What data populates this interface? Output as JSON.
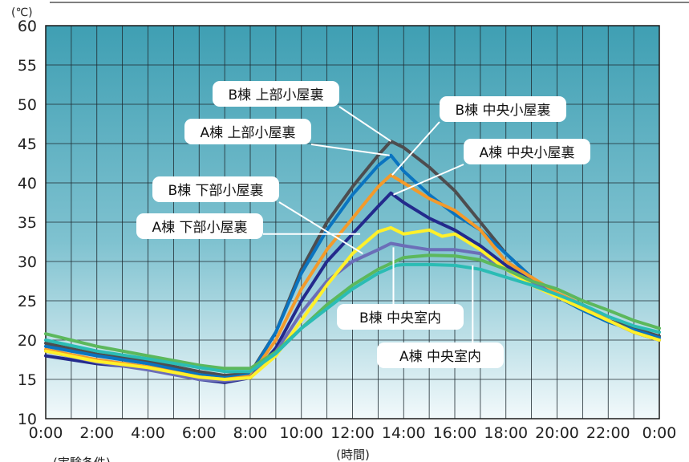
{
  "chart_data": {
    "type": "line",
    "y_unit": "(℃)",
    "xlabel": "(時間)",
    "footnote": "(実験条件)",
    "ylim": [
      10,
      60
    ],
    "y_ticks": [
      "10",
      "15",
      "20",
      "25",
      "30",
      "35",
      "40",
      "45",
      "50",
      "55",
      "60"
    ],
    "xlim": [
      0,
      24
    ],
    "x_ticks": [
      "0:00",
      "2:00",
      "4:00",
      "6:00",
      "8:00",
      "10:00",
      "12:00",
      "14:00",
      "16:00",
      "18:00",
      "20:00",
      "22:00",
      "0:00"
    ],
    "grid": true,
    "series": [
      {
        "name": "B棟 上部小屋裏",
        "color": "#4d4d4f",
        "x": [
          0,
          2,
          4,
          6,
          7,
          8,
          9,
          10,
          11,
          12,
          13,
          13.5,
          14,
          15,
          16,
          17,
          18,
          19,
          20,
          21,
          22,
          23,
          24
        ],
        "y": [
          19.6,
          18.2,
          17.3,
          16,
          15.5,
          15.8,
          21,
          29,
          35,
          39.5,
          43.5,
          45.3,
          44.5,
          42,
          39,
          35,
          31,
          28,
          25.5,
          24,
          22.5,
          21.5,
          20.5
        ]
      },
      {
        "name": "A棟 上部小屋裏",
        "color": "#0a74c0",
        "x": [
          0,
          2,
          4,
          6,
          7,
          8,
          9,
          10,
          11,
          12,
          13,
          13.5,
          14,
          15,
          16,
          17,
          18,
          19,
          20,
          21,
          22,
          23,
          24
        ],
        "y": [
          19.2,
          18,
          17,
          15.6,
          15.2,
          15.6,
          21,
          28.5,
          34,
          38.5,
          42.2,
          43.5,
          41.5,
          38.5,
          36,
          34,
          31,
          28,
          25.5,
          23.8,
          22.3,
          21.3,
          20.3
        ]
      },
      {
        "name": "B棟 中央小屋裏",
        "color": "#f39a2b",
        "x": [
          0,
          2,
          4,
          6,
          7,
          8,
          9,
          10,
          11,
          12,
          13,
          13.5,
          14,
          15,
          16,
          17,
          18,
          19,
          20,
          21,
          22,
          23,
          24
        ],
        "y": [
          18.8,
          17.5,
          16.6,
          15.3,
          15,
          15.4,
          20,
          26.5,
          31.5,
          35.5,
          39.5,
          41,
          40,
          38,
          36.5,
          34,
          30,
          28,
          26,
          24.5,
          22.5,
          21,
          20
        ]
      },
      {
        "name": "A棟 中央小屋裏",
        "color": "#232a8c",
        "x": [
          0,
          2,
          4,
          6,
          7,
          8,
          9,
          10,
          11,
          12,
          13,
          13.5,
          14,
          15,
          16,
          17,
          18,
          19,
          20,
          21,
          22,
          23,
          24
        ],
        "y": [
          18,
          17,
          16.4,
          15,
          14.6,
          15.2,
          19,
          25,
          30,
          33.5,
          37,
          38.7,
          37.5,
          35.5,
          34,
          32,
          29.5,
          27.5,
          25.5,
          24,
          22.5,
          21,
          20
        ]
      },
      {
        "name": "B棟 下部小屋裏",
        "color": "#6b6eb8",
        "x": [
          0,
          2,
          4,
          6,
          7,
          8,
          9,
          10,
          11,
          12,
          13,
          13.5,
          14,
          15,
          16,
          17,
          18,
          19,
          20,
          21,
          22,
          23,
          24
        ],
        "y": [
          18.6,
          17.2,
          16.2,
          15,
          14.8,
          15.2,
          18.5,
          23.5,
          27.5,
          30,
          31.5,
          32.3,
          32,
          31.5,
          31.5,
          31,
          29,
          27.5,
          25.5,
          24,
          22.5,
          21,
          20
        ]
      },
      {
        "name": "A棟 下部小屋裏",
        "color": "#fff02a",
        "x": [
          0,
          2,
          4,
          6,
          7,
          8,
          9,
          10,
          11,
          12,
          13,
          13.5,
          14,
          15,
          15.5,
          16,
          17,
          18,
          19,
          20,
          21,
          22,
          23,
          24
        ],
        "y": [
          18.6,
          17.3,
          16.5,
          15.3,
          15,
          15.2,
          18,
          22.5,
          27,
          31,
          33.8,
          34.3,
          33.5,
          34,
          33.2,
          33.5,
          31.5,
          29,
          27,
          25.5,
          24,
          22.5,
          21,
          20
        ]
      },
      {
        "name": "B棟 中央室内",
        "color": "#5cb85c",
        "x": [
          0,
          2,
          4,
          6,
          7,
          8,
          9,
          10,
          11,
          12,
          13,
          14,
          15,
          16,
          17,
          18,
          19,
          20,
          21,
          22,
          23,
          24
        ],
        "y": [
          20.8,
          19.2,
          18,
          16.8,
          16.4,
          16.4,
          18.5,
          21.5,
          24.5,
          27,
          29,
          30.5,
          30.8,
          30.7,
          30.2,
          29,
          27.5,
          26.5,
          25,
          23.8,
          22.5,
          21.5
        ]
      },
      {
        "name": "A棟 中央室内",
        "color": "#2bbcb4",
        "x": [
          0,
          2,
          4,
          6,
          7,
          8,
          9,
          10,
          11,
          12,
          13,
          13.7,
          14,
          15,
          16,
          17,
          18,
          19,
          20,
          21,
          22,
          23,
          24
        ],
        "y": [
          20,
          18.6,
          17.6,
          16.5,
          16,
          16,
          18.3,
          21.5,
          24,
          26.5,
          28.5,
          29.5,
          29.6,
          29.6,
          29.5,
          29,
          28,
          27,
          25.8,
          24.5,
          23,
          21.8,
          21
        ]
      }
    ],
    "callouts": [
      {
        "text": "B棟 上部小屋裏",
        "anchor_x": 13.5,
        "anchor_y": 45.3
      },
      {
        "text": "B棟 中央小屋裏",
        "anchor_x": 13.55,
        "anchor_y": 41
      },
      {
        "text": "A棟 上部小屋裏",
        "anchor_x": 13.45,
        "anchor_y": 43.5
      },
      {
        "text": "A棟 中央小屋裏",
        "anchor_x": 13.6,
        "anchor_y": 38.5
      },
      {
        "text": "B棟 下部小屋裏",
        "anchor_x": 12.4,
        "anchor_y": 31
      },
      {
        "text": "A棟 下部小屋裏",
        "anchor_x": 12.3,
        "anchor_y": 33.5
      },
      {
        "text": "B棟 中央室内",
        "anchor_x": 13.6,
        "anchor_y": 31.8
      },
      {
        "text": "A棟 中央室内",
        "anchor_x": 16.7,
        "anchor_y": 29.5
      }
    ]
  }
}
